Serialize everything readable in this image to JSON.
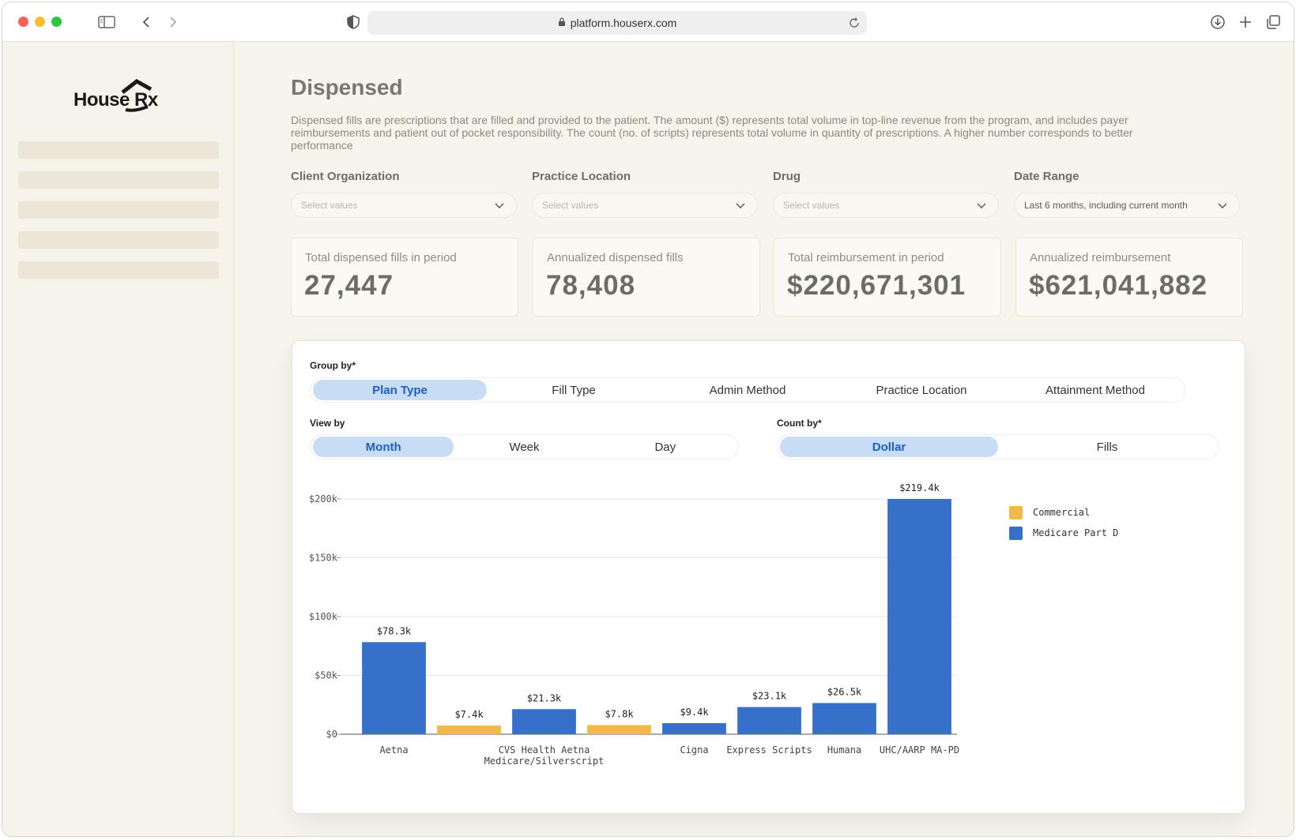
{
  "browser": {
    "url": "platform.houserx.com"
  },
  "brand": {
    "logo_text": "House Rx"
  },
  "page": {
    "title": "Dispensed",
    "description": "Dispensed fills are prescriptions that are filled and provided to the patient. The amount ($) represents total volume in top-line revenue from the program, and includes payer reimbursements and patient out of pocket responsibility. The count (no. of scripts) represents total volume in quantity of prescriptions. A higher number corresponds to better performance"
  },
  "filters": [
    {
      "label": "Client Organization",
      "value": "Select values"
    },
    {
      "label": "Practice Location",
      "value": "Select values"
    },
    {
      "label": "Drug",
      "value": "Select values"
    },
    {
      "label": "Date Range",
      "value": "Last 6 months, including current month"
    }
  ],
  "cards": [
    {
      "label": "Total dispensed fills in period",
      "value": "27,447"
    },
    {
      "label": "Annualized dispensed fills",
      "value": "78,408"
    },
    {
      "label": "Total reimbursement in period",
      "value": "$220,671,301"
    },
    {
      "label": "Annualized reimbursement",
      "value": "$621,041,882"
    }
  ],
  "controls": {
    "group_by": {
      "label": "Group by*",
      "options": [
        "Plan Type",
        "Fill Type",
        "Admin Method",
        "Practice Location",
        "Attainment Method"
      ],
      "selected": "Plan Type"
    },
    "view_by": {
      "label": "View by",
      "options": [
        "Month",
        "Week",
        "Day"
      ],
      "selected": "Month"
    },
    "count_by": {
      "label": "Count by*",
      "options": [
        "Dollar",
        "Fills"
      ],
      "selected": "Dollar"
    }
  },
  "colors": {
    "commercial": "#f2b84b",
    "medicare": "#3670c8",
    "active_segment": "#c9dcf5",
    "active_text": "#1d5fbf"
  },
  "chart_data": {
    "type": "bar",
    "ylim": [
      0,
      200000
    ],
    "yticks": [
      {
        "value": 0,
        "label": "$0"
      },
      {
        "value": 50000,
        "label": "$50k"
      },
      {
        "value": 100000,
        "label": "$100k"
      },
      {
        "value": 150000,
        "label": "$150k"
      },
      {
        "value": 200000,
        "label": "$200k"
      }
    ],
    "grid": true,
    "legend_position": "right",
    "series": [
      {
        "name": "Commercial",
        "color": "#f2b84b"
      },
      {
        "name": "Medicare Part D",
        "color": "#3670c8"
      }
    ],
    "categories": [
      {
        "label": [
          "Aetna"
        ]
      },
      {
        "label": [
          "CVS Health Aetna",
          "Medicare/Silverscript"
        ]
      },
      {
        "label": [
          "Cigna"
        ]
      },
      {
        "label": [
          "Express Scripts"
        ]
      },
      {
        "label": [
          "Humana"
        ]
      },
      {
        "label": [
          "UHC/AARP MA-PD"
        ]
      }
    ],
    "bars": [
      {
        "category": 0,
        "series": "Medicare Part D",
        "value": 78300,
        "label": "$78.3k"
      },
      {
        "category": 1,
        "series": "Commercial",
        "value": 7400,
        "label": "$7.4k"
      },
      {
        "category": 1,
        "series": "Medicare Part D",
        "value": 21300,
        "label": "$21.3k"
      },
      {
        "category": 1,
        "series": "Commercial",
        "value": 7800,
        "label": "$7.8k"
      },
      {
        "category": 2,
        "series": "Medicare Part D",
        "value": 9400,
        "label": "$9.4k"
      },
      {
        "category": 3,
        "series": "Medicare Part D",
        "value": 23100,
        "label": "$23.1k"
      },
      {
        "category": 4,
        "series": "Medicare Part D",
        "value": 26500,
        "label": "$26.5k"
      },
      {
        "category": 5,
        "series": "Medicare Part D",
        "value": 219400,
        "label": "$219.4k"
      }
    ]
  }
}
